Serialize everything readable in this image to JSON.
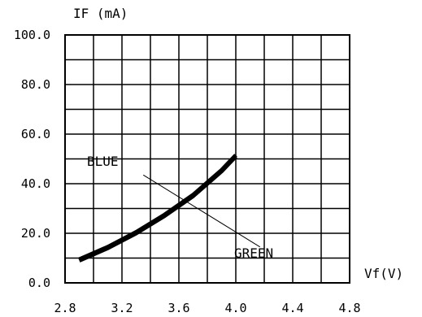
{
  "chart_data": {
    "type": "line",
    "title": "",
    "xlabel": "Vf(V)",
    "ylabel": "IF (mA)",
    "xlim": [
      2.8,
      4.8
    ],
    "ylim": [
      0,
      100
    ],
    "x_ticks": [
      "2.8",
      "3.2",
      "3.6",
      "4.0",
      "4.4",
      "4.8"
    ],
    "y_ticks": [
      "0.0",
      "20.0",
      "40.0",
      "60.0",
      "80.0",
      "100.0"
    ],
    "grid": true,
    "series": [
      {
        "name": "BLUE",
        "x": [
          2.9,
          3.1,
          3.3,
          3.5,
          3.7,
          3.9,
          4.0
        ],
        "y": [
          9,
          14,
          20,
          27,
          35,
          45,
          51
        ]
      },
      {
        "name": "GREEN",
        "x": [
          2.9,
          3.1,
          3.3,
          3.5,
          3.7,
          3.9,
          4.0
        ],
        "y": [
          9.5,
          14.5,
          20.5,
          27.5,
          35.5,
          45.5,
          51.5
        ]
      }
    ],
    "annotations": [
      "BLUE",
      "GREEN"
    ],
    "colors": {
      "line": "#000000",
      "grid": "#000000"
    }
  }
}
